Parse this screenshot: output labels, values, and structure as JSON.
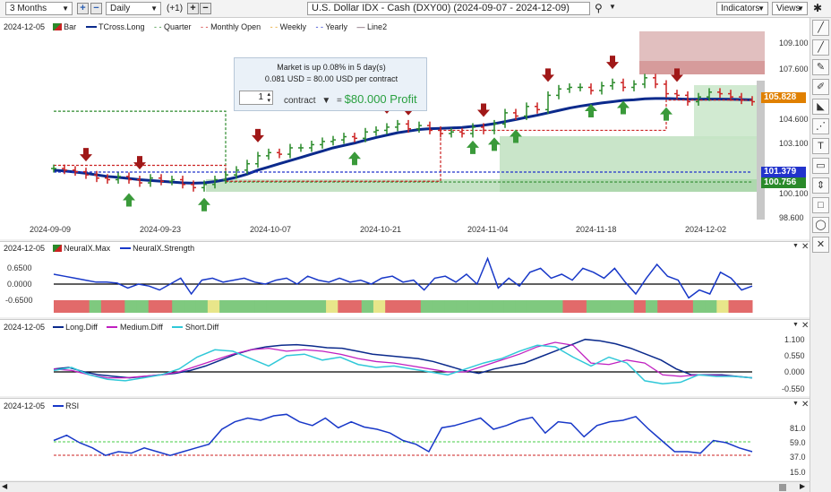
{
  "toolbar": {
    "range": "3 Months",
    "interval": "Daily",
    "interval_change": "(+1)",
    "title": "U.S. Dollar IDX - Cash (DXY00) (2024-09-07 - 2024-12-09)",
    "indicators": "Indicators",
    "views": "Views"
  },
  "main": {
    "date": "2024-12-05",
    "legend": [
      "Bar",
      "TCross.Long",
      "Quarter",
      "Monthly Open",
      "Weekly",
      "Yearly",
      "Line2"
    ],
    "legend_colors": [
      "#2a8a2a",
      "#0b2a8c",
      "#2e8b2e",
      "#cc2222",
      "#e6a020",
      "#2233cc",
      "#553344"
    ],
    "yticks": [
      "109.100",
      "107.600",
      "104.600",
      "103.100",
      "100.100",
      "98.600"
    ],
    "xticks": [
      "2024-09-09",
      "2024-09-23",
      "2024-10-07",
      "2024-10-21",
      "2024-11-04",
      "2024-11-18",
      "2024-12-02"
    ],
    "price_tags": [
      {
        "label": "105.828",
        "color": "#e08000"
      },
      {
        "label": "101.379",
        "color": "#2233cc"
      },
      {
        "label": "100.756",
        "color": "#2a8a2a"
      }
    ],
    "callout": {
      "line1": "Market is up 0.08% in 5 day(s)",
      "line2": "0.081 USD = 80.00 USD per contract",
      "qty": "1",
      "unit": "contract",
      "equals": "=",
      "profit": "$80.000 Profit"
    }
  },
  "neural": {
    "date": "2024-12-05",
    "legend": [
      "NeuralX.Max",
      "NeuralX.Strength"
    ],
    "yticks": [
      "0.6500",
      "0.0000",
      "-0.6500"
    ]
  },
  "diff": {
    "date": "2024-12-05",
    "legend": [
      "Long.Diff",
      "Medium.Diff",
      "Short.Diff"
    ],
    "yticks": [
      "1.100",
      "0.550",
      "0.000",
      "-0.550"
    ]
  },
  "rsi": {
    "date": "2024-12-05",
    "legend": [
      "RSI"
    ],
    "yticks": [
      "81.0",
      "59.0",
      "37.0",
      "15.0"
    ]
  },
  "chart_data": [
    {
      "type": "bar",
      "title": "U.S. Dollar IDX - Cash (DXY00)",
      "categories": [
        "2024-09-09",
        "2024-09-23",
        "2024-10-07",
        "2024-10-21",
        "2024-11-04",
        "2024-11-18",
        "2024-12-02"
      ],
      "x": [
        0,
        1,
        2,
        3,
        4,
        5,
        6,
        7,
        8,
        9,
        10,
        11,
        12,
        13,
        14,
        15,
        16,
        17,
        18,
        19,
        20,
        21,
        22,
        23,
        24,
        25,
        26,
        27,
        28,
        29,
        30,
        31,
        32,
        33,
        34,
        35,
        36,
        37,
        38,
        39,
        40,
        41,
        42,
        43,
        44,
        45,
        46,
        47,
        48,
        49,
        50,
        51,
        52,
        53,
        54,
        55,
        56,
        57,
        58,
        59,
        60,
        61,
        62,
        63,
        64,
        65
      ],
      "series": [
        {
          "name": "Bar",
          "values": [
            101.6,
            101.5,
            101.4,
            101.2,
            101.0,
            100.9,
            101.1,
            100.9,
            100.7,
            101.0,
            100.8,
            100.9,
            100.6,
            100.4,
            100.6,
            100.9,
            101.2,
            101.5,
            101.9,
            102.4,
            102.6,
            102.5,
            102.9,
            102.9,
            103.1,
            103.3,
            103.4,
            103.6,
            103.5,
            103.9,
            104.0,
            104.2,
            104.4,
            104.1,
            104.3,
            104.0,
            103.8,
            103.9,
            103.8,
            104.2,
            104.0,
            104.4,
            105.1,
            104.9,
            105.5,
            105.3,
            106.2,
            106.6,
            106.7,
            106.7,
            106.5,
            106.8,
            107.0,
            106.7,
            106.9,
            107.3,
            106.9,
            106.3,
            106.2,
            105.8,
            106.1,
            106.4,
            106.3,
            106.1,
            105.9,
            105.8
          ]
        },
        {
          "name": "TCross.Long",
          "values": [
            101.5,
            101.45,
            101.38,
            101.3,
            101.2,
            101.1,
            101.05,
            100.98,
            100.9,
            100.85,
            100.8,
            100.75,
            100.7,
            100.68,
            100.7,
            100.78,
            100.9,
            101.05,
            101.25,
            101.5,
            101.7,
            101.9,
            102.1,
            102.3,
            102.5,
            102.7,
            102.9,
            103.05,
            103.2,
            103.38,
            103.55,
            103.7,
            103.85,
            103.95,
            104.05,
            104.1,
            104.12,
            104.15,
            104.18,
            104.25,
            104.32,
            104.42,
            104.55,
            104.68,
            104.82,
            104.95,
            105.1,
            105.25,
            105.4,
            105.52,
            105.62,
            105.72,
            105.8,
            105.88,
            105.92,
            105.98,
            106.0,
            106.0,
            105.98,
            105.95,
            105.95,
            105.96,
            105.96,
            105.95,
            105.93,
            105.92
          ]
        },
        {
          "name": "Quarter",
          "values": [
            105.2,
            105.2,
            105.2,
            105.2,
            105.2,
            105.2,
            105.2,
            105.2,
            105.2,
            105.2,
            105.2,
            105.2,
            105.2,
            105.2,
            105.2,
            105.2,
            100.756,
            100.756,
            100.756,
            100.756,
            100.756,
            100.756,
            100.756,
            100.756,
            100.756,
            100.756,
            100.756,
            100.756,
            100.756,
            100.756,
            100.756,
            100.756,
            100.756,
            100.756,
            100.756,
            100.756,
            100.756,
            100.756,
            100.756,
            100.756,
            100.756,
            100.756,
            100.756,
            100.756,
            100.756,
            100.756,
            100.756,
            100.756,
            100.756,
            100.756,
            100.756,
            100.756,
            100.756,
            100.756,
            100.756,
            100.756,
            100.756,
            100.756,
            100.756,
            100.756,
            100.756,
            100.756,
            100.756,
            100.756,
            100.756,
            100.756
          ]
        },
        {
          "name": "Monthly Open",
          "values": [
            101.8,
            101.8,
            101.8,
            101.8,
            101.8,
            101.8,
            101.8,
            101.8,
            101.8,
            101.8,
            101.8,
            101.8,
            101.8,
            101.8,
            101.8,
            101.8,
            100.8,
            100.8,
            100.8,
            100.8,
            100.8,
            100.8,
            100.8,
            100.8,
            100.8,
            100.8,
            100.8,
            100.8,
            100.8,
            100.8,
            100.8,
            100.8,
            100.8,
            100.8,
            100.8,
            100.8,
            104.0,
            104.0,
            104.0,
            104.0,
            104.0,
            104.0,
            104.0,
            104.0,
            104.0,
            104.0,
            104.0,
            104.0,
            104.0,
            104.0,
            104.0,
            104.0,
            104.0,
            104.0,
            104.0,
            104.0,
            104.0,
            105.9,
            105.9,
            105.9,
            105.9,
            105.9,
            105.9,
            105.9,
            105.9,
            105.9
          ]
        },
        {
          "name": "Yearly",
          "values": [
            101.379,
            101.379,
            101.379,
            101.379,
            101.379,
            101.379,
            101.379,
            101.379,
            101.379,
            101.379,
            101.379,
            101.379,
            101.379,
            101.379,
            101.379,
            101.379,
            101.379,
            101.379,
            101.379,
            101.379,
            101.379,
            101.379,
            101.379,
            101.379,
            101.379,
            101.379,
            101.379,
            101.379,
            101.379,
            101.379,
            101.379,
            101.379,
            101.379,
            101.379,
            101.379,
            101.379,
            101.379,
            101.379,
            101.379,
            101.379,
            101.379,
            101.379,
            101.379,
            101.379,
            101.379,
            101.379,
            101.379,
            101.379,
            101.379,
            101.379,
            101.379,
            101.379,
            101.379,
            101.379,
            101.379,
            101.379,
            101.379,
            101.379,
            101.379,
            101.379,
            101.379,
            101.379,
            101.379,
            101.379,
            101.379,
            101.379
          ]
        }
      ],
      "ylim": [
        98.0,
        110.5
      ],
      "grid": false,
      "legend": "top-left"
    },
    {
      "type": "line",
      "title": "NeuralX",
      "series": [
        {
          "name": "NeuralX.Strength",
          "values": [
            0.5,
            0.4,
            0.3,
            0.2,
            0.1,
            0.1,
            0.05,
            -0.2,
            0.0,
            -0.1,
            -0.3,
            0.0,
            0.3,
            -0.5,
            0.2,
            0.3,
            0.1,
            0.2,
            0.3,
            0.1,
            0.0,
            0.2,
            0.3,
            0.0,
            0.4,
            0.2,
            0.1,
            0.3,
            0.1,
            0.2,
            0.0,
            0.3,
            0.4,
            0.1,
            0.2,
            -0.3,
            0.3,
            0.4,
            0.1,
            0.5,
            0.0,
            1.3,
            -0.2,
            0.3,
            -0.1,
            0.6,
            0.8,
            0.3,
            0.5,
            0.2,
            0.8,
            0.6,
            0.3,
            0.8,
            0.1,
            -0.5,
            0.3,
            1.0,
            0.4,
            0.2,
            -0.7,
            -0.3,
            -0.5,
            0.6,
            0.3,
            -0.3,
            -0.1
          ]
        }
      ],
      "ylim": [
        -0.9,
        1.1
      ]
    },
    {
      "type": "line",
      "title": "Diff",
      "series": [
        {
          "name": "Long.Diff",
          "values": [
            0.1,
            0.15,
            0.0,
            -0.1,
            -0.15,
            -0.2,
            -0.15,
            -0.1,
            -0.05,
            0.05,
            0.2,
            0.4,
            0.6,
            0.75,
            0.85,
            0.9,
            0.92,
            0.88,
            0.82,
            0.8,
            0.7,
            0.6,
            0.55,
            0.5,
            0.45,
            0.35,
            0.2,
            0.05,
            -0.05,
            0.1,
            0.2,
            0.3,
            0.5,
            0.7,
            0.9,
            1.1,
            1.05,
            0.95,
            0.8,
            0.6,
            0.4,
            0.1,
            -0.1,
            -0.1,
            -0.1,
            -0.15,
            -0.2
          ]
        },
        {
          "name": "Medium.Diff",
          "values": [
            0.1,
            0.05,
            -0.1,
            -0.2,
            -0.2,
            -0.15,
            -0.1,
            0.0,
            0.2,
            0.4,
            0.6,
            0.75,
            0.8,
            0.7,
            0.75,
            0.7,
            0.6,
            0.45,
            0.35,
            0.3,
            0.2,
            0.1,
            0.0,
            0.0,
            0.2,
            0.4,
            0.6,
            0.85,
            1.0,
            0.9,
            0.3,
            0.25,
            0.4,
            0.3,
            -0.1,
            -0.15,
            -0.1,
            -0.12,
            -0.15,
            -0.2
          ]
        },
        {
          "name": "Short.Diff",
          "values": [
            0.05,
            0.15,
            -0.1,
            -0.25,
            -0.3,
            -0.2,
            -0.1,
            0.1,
            0.5,
            0.75,
            0.7,
            0.45,
            0.2,
            0.55,
            0.6,
            0.4,
            0.5,
            0.25,
            0.15,
            0.2,
            0.1,
            0.0,
            -0.1,
            0.1,
            0.3,
            0.45,
            0.7,
            0.9,
            0.85,
            0.5,
            0.2,
            0.5,
            0.3,
            -0.3,
            -0.4,
            -0.35,
            -0.1,
            -0.15,
            -0.15,
            -0.2
          ]
        }
      ],
      "ylim": [
        -0.7,
        1.3
      ]
    },
    {
      "type": "line",
      "title": "RSI",
      "series": [
        {
          "name": "RSI",
          "values": [
            55,
            62,
            52,
            45,
            35,
            40,
            38,
            45,
            40,
            35,
            40,
            45,
            50,
            70,
            80,
            85,
            82,
            88,
            90,
            80,
            75,
            85,
            72,
            80,
            73,
            70,
            65,
            55,
            50,
            40,
            72,
            75,
            80,
            85,
            70,
            75,
            82,
            86,
            65,
            80,
            78,
            60,
            75,
            80,
            82,
            87,
            70,
            55,
            40,
            40,
            38,
            55,
            52,
            45,
            40
          ]
        }
      ],
      "ylim": [
        10,
        100
      ]
    }
  ]
}
